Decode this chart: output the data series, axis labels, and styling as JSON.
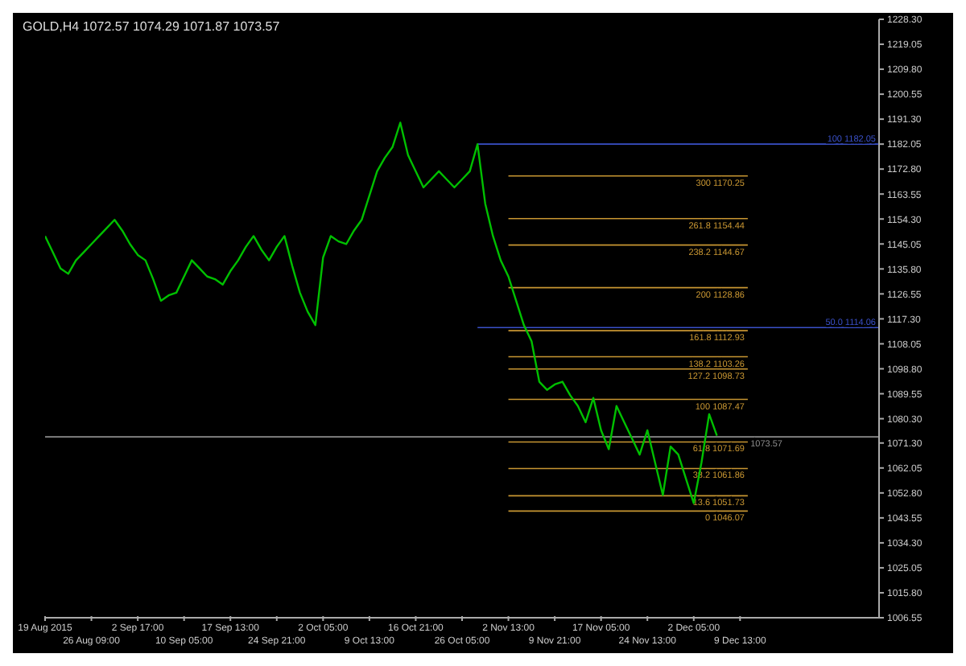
{
  "chart_data": {
    "type": "line",
    "title": "GOLD,H4  1072.57 1074.29 1071.87 1073.57",
    "categories": [
      "19 Aug 2015",
      null,
      null,
      null,
      null,
      null,
      "26 Aug 09:00",
      null,
      null,
      null,
      null,
      null,
      "2 Sep 17:00",
      null,
      null,
      null,
      null,
      null,
      "10 Sep 05:00",
      null,
      null,
      null,
      null,
      null,
      "17 Sep 13:00",
      null,
      null,
      null,
      null,
      null,
      "24 Sep 21:00",
      null,
      null,
      null,
      null,
      null,
      "2 Oct 05:00",
      null,
      null,
      null,
      null,
      null,
      "9 Oct 13:00",
      null,
      null,
      null,
      null,
      null,
      "16 Oct 21:00",
      null,
      null,
      null,
      null,
      null,
      "26 Oct 05:00",
      null,
      null,
      null,
      null,
      null,
      "2 Nov 13:00",
      null,
      null,
      null,
      null,
      null,
      "9 Nov 21:00",
      null,
      null,
      null,
      null,
      null,
      "17 Nov 05:00",
      null,
      null,
      null,
      null,
      null,
      "24 Nov 13:00",
      null,
      null,
      null,
      null,
      null,
      "2 Dec 05:00",
      null,
      null,
      null,
      null,
      null,
      "9 Dec 13:00",
      null,
      null,
      null,
      null,
      null,
      null,
      null,
      null,
      null,
      null,
      null,
      null,
      null,
      null,
      null,
      null,
      null,
      null
    ],
    "series": [
      {
        "color": "#00c000",
        "values": [
          1148,
          1142,
          1136,
          1134,
          1139,
          1142,
          1145,
          1148,
          1151,
          1154,
          1150,
          1145,
          1141,
          1139,
          1132,
          1124,
          1126,
          1127,
          1133,
          1139,
          1136,
          1133,
          1132,
          1130,
          1135,
          1139,
          1144,
          1148,
          1143,
          1139,
          1144,
          1148,
          1137,
          1127,
          1120,
          1115,
          1140,
          1148,
          1146,
          1145,
          1150,
          1154,
          1163,
          1172,
          1177,
          1181,
          1190,
          1178,
          1172,
          1166,
          1169,
          1172,
          1169,
          1166,
          1169,
          1172,
          1182,
          1160,
          1148,
          1139,
          1133,
          1124,
          1115,
          1109,
          1094,
          1091,
          1093,
          1094,
          1089,
          1085,
          1079,
          1088,
          1076,
          1069,
          1085,
          1079,
          1073,
          1067,
          1076,
          1064,
          1052,
          1070,
          1067,
          1058,
          1049,
          1064,
          1082,
          1074,
          null,
          null,
          null,
          null,
          null,
          null,
          null,
          null,
          null,
          null,
          null,
          null,
          null,
          null,
          null,
          null,
          null,
          null,
          null,
          null,
          null
        ]
      }
    ],
    "ylim": [
      1006.55,
      1228.3
    ],
    "yticks": [
      1006.55,
      {
        "value": 1015.8,
        "label": "1015.80"
      },
      1025.05,
      {
        "value": 1034.3,
        "label": "1034.30"
      },
      1043.55,
      {
        "value": 1052.8,
        "label": "1052.80"
      },
      1062.05,
      {
        "value": 1071.3,
        "label": "1071.30"
      },
      {
        "value": 1080.3,
        "label": "1080.30"
      },
      1089.55,
      {
        "value": 1098.8,
        "label": "1098.80"
      },
      1108.05,
      {
        "value": 1117.3,
        "label": "1117.30"
      },
      1126.55,
      {
        "value": 1135.8,
        "label": "1135.80"
      },
      1145.05,
      {
        "value": 1154.3,
        "label": "1154.30"
      },
      1163.55,
      {
        "value": 1172.8,
        "label": "1172.80"
      },
      1182.05,
      {
        "value": 1191.3,
        "label": "1191.30"
      },
      1200.55,
      {
        "value": 1209.8,
        "label": "1209.80"
      },
      1219.05,
      {
        "value": 1228.3,
        "label": "1228.30"
      }
    ],
    "ref_lines": [
      {
        "axis": "y",
        "value": 1170.25,
        "label": "300 1170.25",
        "color": "#c89632"
      },
      {
        "axis": "y",
        "value": 1154.44,
        "label": "261.8 1154.44",
        "color": "#c89632"
      },
      {
        "axis": "y",
        "value": 1144.67,
        "label": "238.2 1144.67",
        "color": "#c89632"
      },
      {
        "axis": "y",
        "value": 1128.86,
        "label": "200 1128.86",
        "color": "#c89632"
      },
      {
        "axis": "y",
        "value": 1112.93,
        "label": "161.8 1112.93",
        "color": "#c89632"
      },
      {
        "axis": "y",
        "value": 1103.26,
        "label": "138.2 1103.26",
        "color": "#c89632"
      },
      {
        "axis": "y",
        "value": 1098.73,
        "label": "127.2 1098.73",
        "color": "#c89632"
      },
      {
        "axis": "y",
        "value": 1087.47,
        "label": "100 1087.47",
        "color": "#c89632"
      },
      {
        "axis": "y",
        "value": 1071.69,
        "label": "61.8 1071.69",
        "color": "#c89632"
      },
      {
        "axis": "y",
        "value": 1061.86,
        "label": "38.2 1061.86",
        "color": "#c89632"
      },
      {
        "axis": "y",
        "value": 1051.73,
        "label": "13.6 1051.73",
        "color": "#c89632"
      },
      {
        "axis": "y",
        "value": 1046.07,
        "label": "0 1046.07",
        "color": "#c89632"
      },
      {
        "axis": "y",
        "value": 1182.05,
        "label": "100 1182.05",
        "color": "#3a50c8"
      },
      {
        "axis": "y",
        "value": 1114.06,
        "label": "50.0 1114.06",
        "color": "#3a50c8"
      },
      {
        "axis": "y",
        "value": 1073.57,
        "label": "1073.57",
        "color": "#8c8c8c"
      }
    ]
  }
}
